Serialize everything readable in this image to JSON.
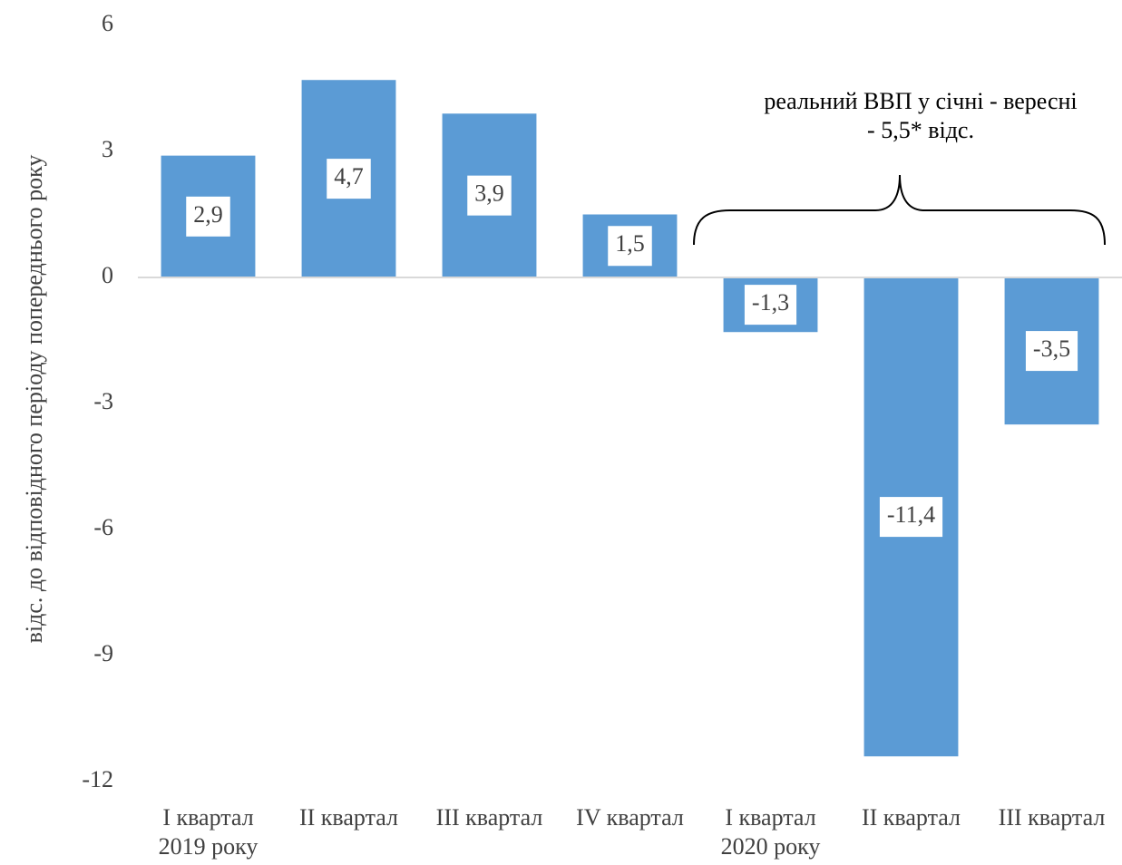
{
  "chart_data": {
    "type": "bar",
    "y_label": "відс. до відповідного періоду попереднього року",
    "annotation": "реальний ВВП у січні - вересні\n- 5,5* відс.",
    "categories": [
      "I квартал\n2019 року",
      "II квартал",
      "III квартал",
      "IV квартал",
      "I квартал\n2020 року",
      "II квартал",
      "III квартал"
    ],
    "values": [
      2.9,
      4.7,
      3.9,
      1.5,
      -1.3,
      -11.4,
      -3.5
    ],
    "value_labels": [
      "2,9",
      "4,7",
      "3,9",
      "1,5",
      "-1,3",
      "-11,4",
      "-3,5"
    ],
    "color": "#5b9bd5",
    "ylim": [
      -12,
      6
    ],
    "yticks": [
      6,
      3,
      0,
      -3,
      -6,
      -9,
      -12
    ],
    "grid": false
  }
}
